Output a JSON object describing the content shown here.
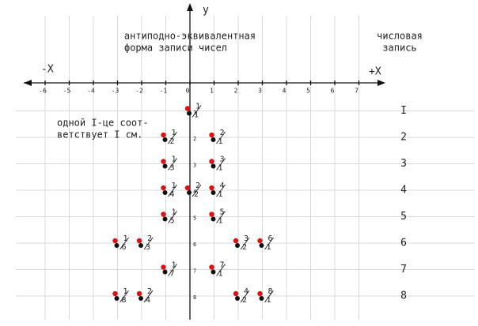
{
  "axes": {
    "y_label": "y",
    "x_neg_label": "-X",
    "x_pos_label": "+X",
    "x_ticks": [
      -6,
      -5,
      -4,
      -3,
      -2,
      -1,
      0,
      1,
      2,
      3,
      4,
      5,
      6,
      7
    ],
    "y_ticks": [
      1,
      2,
      3,
      4,
      5,
      6,
      7,
      8
    ]
  },
  "header": {
    "title_lines": [
      "антиподно-эквивалентная",
      "форма записи чисел"
    ],
    "right_title_lines": [
      "числовая",
      "запись"
    ]
  },
  "note_lines": [
    "одной I-це соот-",
    "ветствует I см."
  ],
  "row_numbers": [
    "I",
    "2",
    "3",
    "4",
    "5",
    "6",
    "7",
    "8"
  ],
  "points": [
    {
      "x": 0,
      "y": 1,
      "num": "1",
      "den": "1"
    },
    {
      "x": -1,
      "y": 2,
      "num": "1",
      "den": "2"
    },
    {
      "x": 1,
      "y": 2,
      "num": "2",
      "den": "1"
    },
    {
      "x": -1,
      "y": 3,
      "num": "1",
      "den": "3"
    },
    {
      "x": 1,
      "y": 3,
      "num": "3",
      "den": "1"
    },
    {
      "x": -1,
      "y": 4,
      "num": "1",
      "den": "4"
    },
    {
      "x": 0,
      "y": 4,
      "num": "2",
      "den": "2"
    },
    {
      "x": 1,
      "y": 4,
      "num": "4",
      "den": "1"
    },
    {
      "x": -1,
      "y": 5,
      "num": "1",
      "den": "5"
    },
    {
      "x": 1,
      "y": 5,
      "num": "5",
      "den": "1"
    },
    {
      "x": -3,
      "y": 6,
      "num": "1",
      "den": "6"
    },
    {
      "x": -2,
      "y": 6,
      "num": "2",
      "den": "3"
    },
    {
      "x": 2,
      "y": 6,
      "num": "3",
      "den": "2"
    },
    {
      "x": 3,
      "y": 6,
      "num": "6",
      "den": "1"
    },
    {
      "x": -1,
      "y": 7,
      "num": "1",
      "den": "7"
    },
    {
      "x": 1,
      "y": 7,
      "num": "7",
      "den": "1"
    },
    {
      "x": -3,
      "y": 8,
      "num": "1",
      "den": "8"
    },
    {
      "x": -2,
      "y": 8,
      "num": "2",
      "den": "4"
    },
    {
      "x": 2,
      "y": 8,
      "num": "4",
      "den": "2"
    },
    {
      "x": 3,
      "y": 8,
      "num": "8",
      "den": "1"
    }
  ]
}
